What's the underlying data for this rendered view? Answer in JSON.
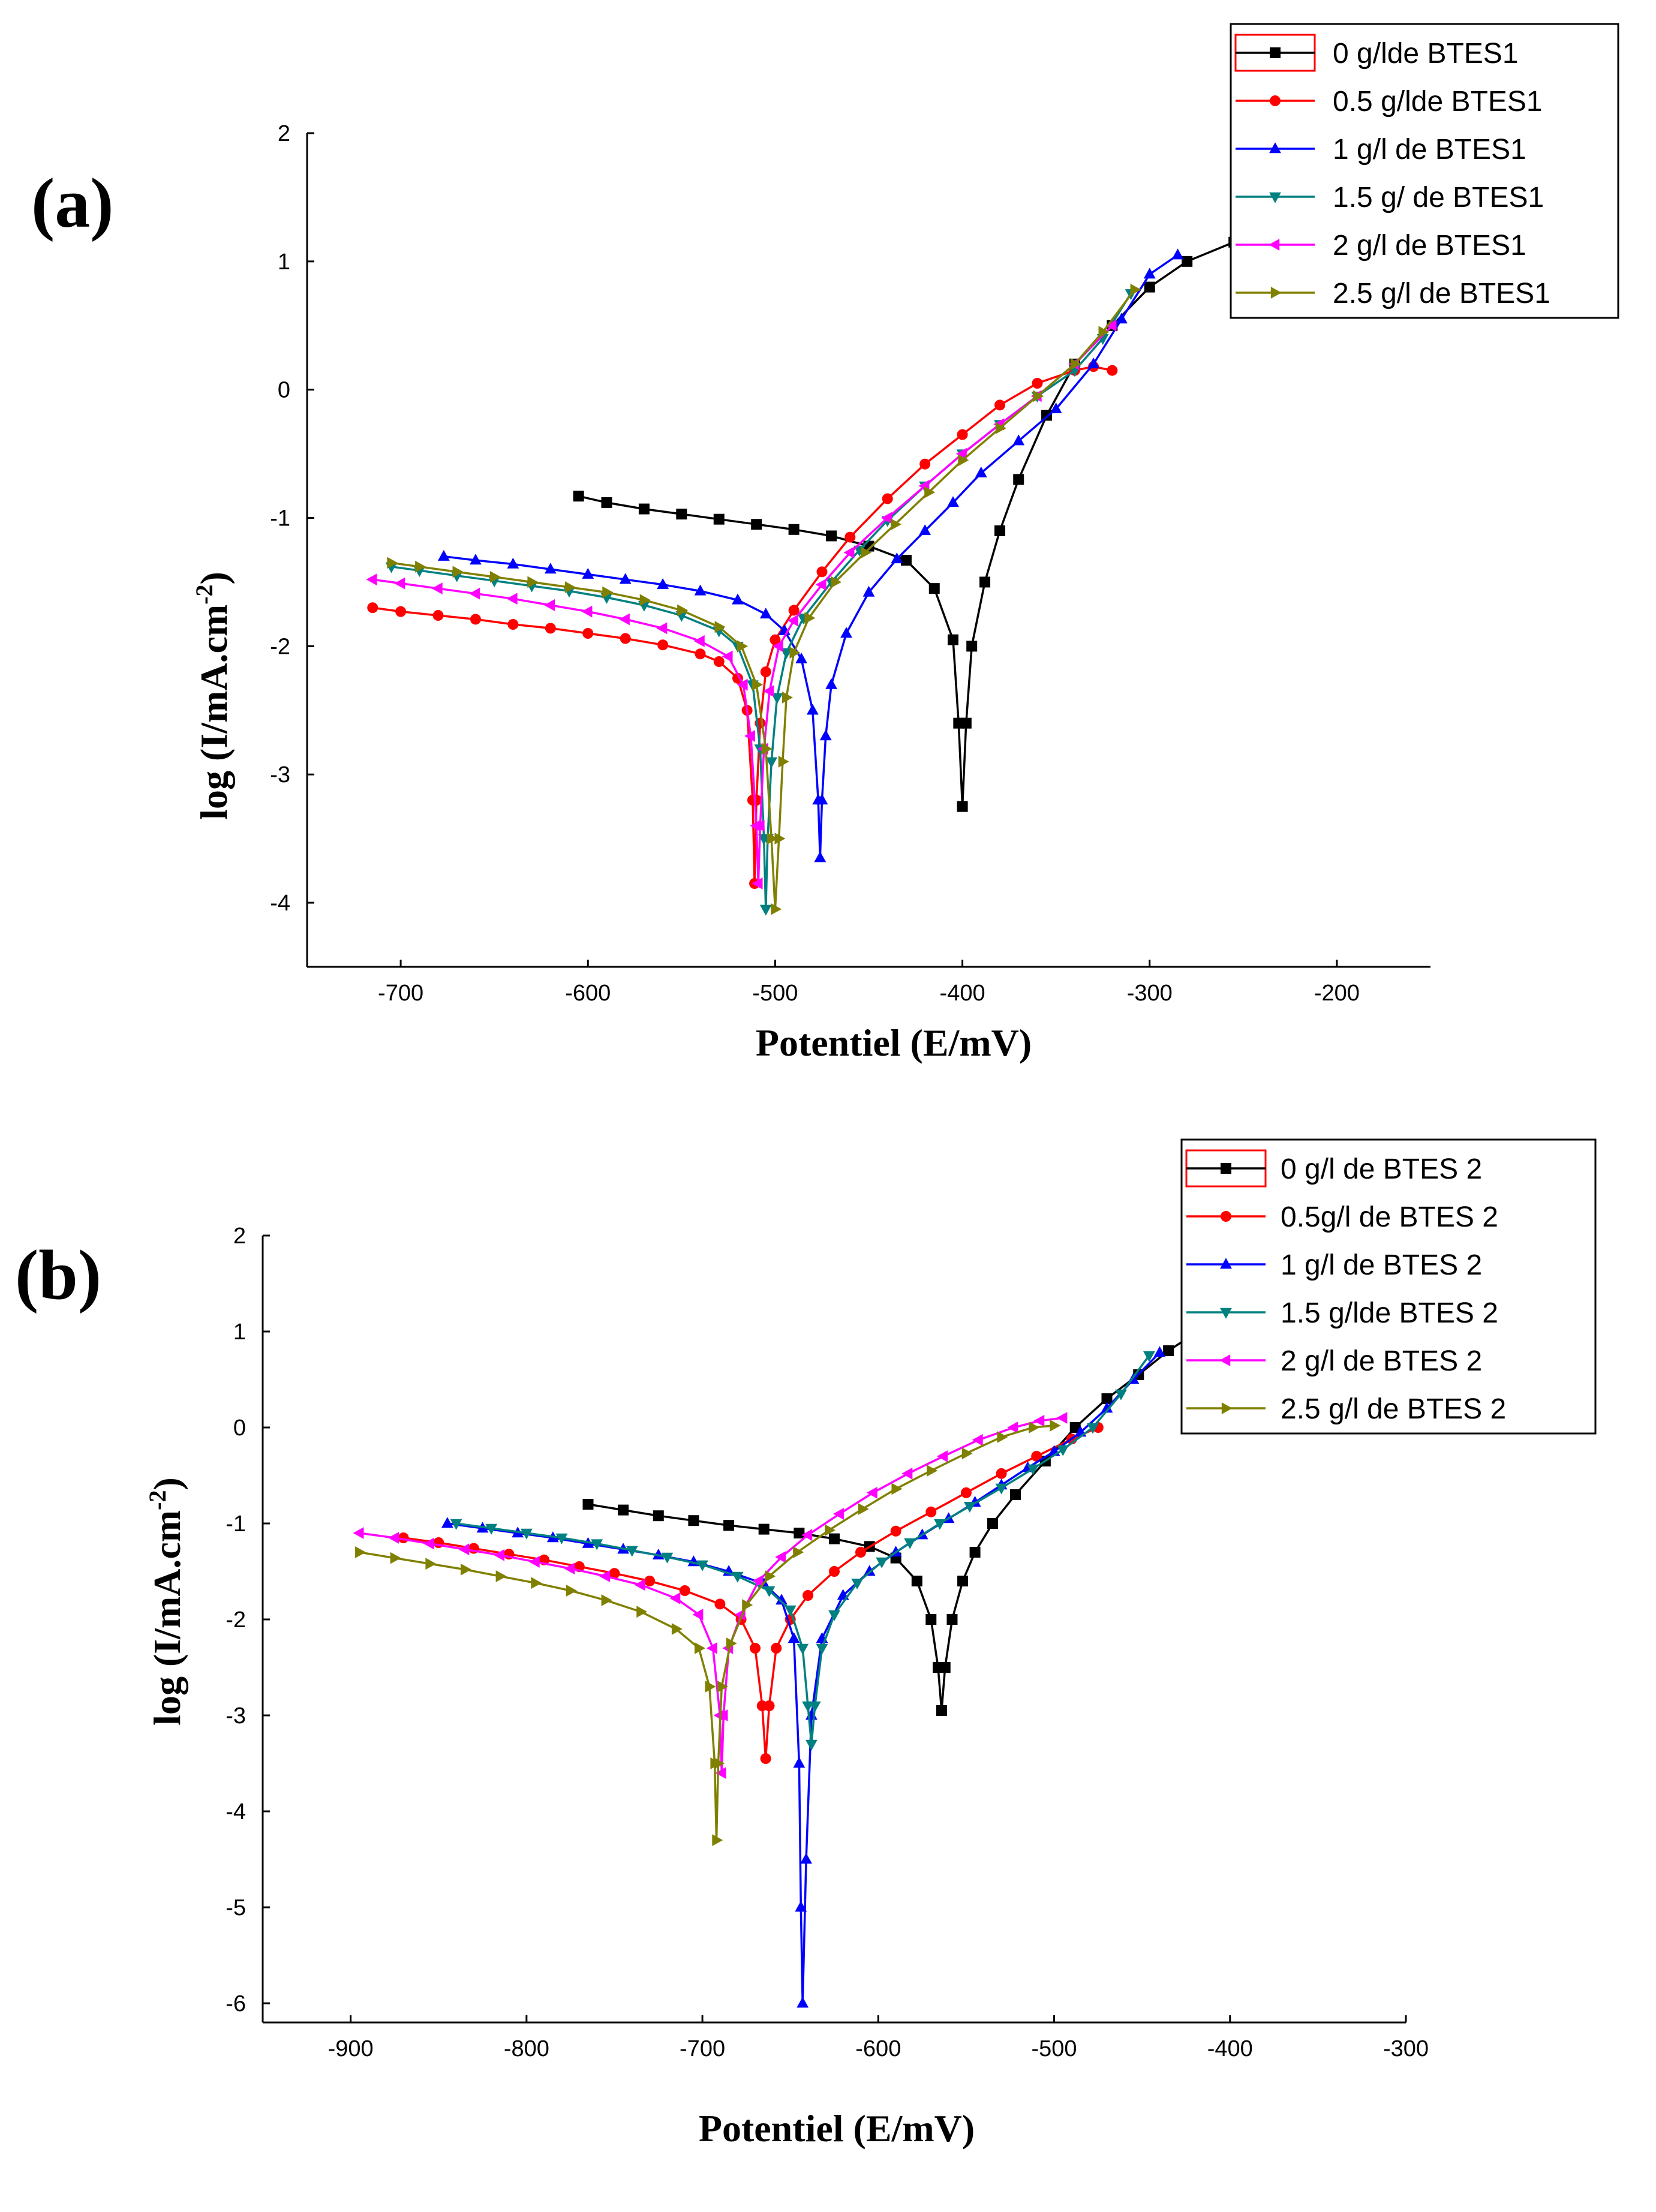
{
  "chart_data": [
    {
      "type": "line",
      "panel_label": "(a)",
      "xlabel": "Potentiel (E/mV)",
      "ylabel": "log (I/mA.cm-2)",
      "ylabel_main": "log (I/mA.cm",
      "ylabel_sup": "-2",
      "ylabel_end": ")",
      "xlim": [
        -750,
        -150
      ],
      "ylim": [
        -4.5,
        2
      ],
      "xticks": [
        -700,
        -600,
        -500,
        -400,
        -300,
        -200
      ],
      "yticks": [
        -4,
        -3,
        -2,
        -1,
        0,
        1,
        2
      ],
      "legend_position": "top-right",
      "series": [
        {
          "name": "0 g/lde BTES1",
          "color": "#000000",
          "marker": "square",
          "x": [
            -605,
            -590,
            -570,
            -550,
            -530,
            -510,
            -490,
            -470,
            -450,
            -430,
            -415,
            -405,
            -402,
            -400,
            -398,
            -395,
            -388,
            -380,
            -370,
            -355,
            -340,
            -320,
            -300,
            -280,
            -255
          ],
          "y": [
            -0.83,
            -0.88,
            -0.93,
            -0.97,
            -1.01,
            -1.05,
            -1.09,
            -1.14,
            -1.22,
            -1.33,
            -1.55,
            -1.95,
            -2.6,
            -3.25,
            -2.6,
            -2.0,
            -1.5,
            -1.1,
            -0.7,
            -0.2,
            0.2,
            0.5,
            0.8,
            1.0,
            1.15
          ]
        },
        {
          "name": "0.5 g/lde BTES1",
          "color": "#ff0000",
          "marker": "circle",
          "x": [
            -715,
            -700,
            -680,
            -660,
            -640,
            -620,
            -600,
            -580,
            -560,
            -540,
            -530,
            -520,
            -515,
            -512,
            -511,
            -510,
            -508,
            -505,
            -500,
            -490,
            -475,
            -460,
            -440,
            -420,
            -400,
            -380,
            -360,
            -340,
            -330,
            -320
          ],
          "y": [
            -1.7,
            -1.73,
            -1.76,
            -1.79,
            -1.83,
            -1.86,
            -1.9,
            -1.94,
            -1.99,
            -2.06,
            -2.12,
            -2.25,
            -2.5,
            -3.2,
            -3.85,
            -3.2,
            -2.6,
            -2.2,
            -1.95,
            -1.72,
            -1.42,
            -1.15,
            -0.85,
            -0.58,
            -0.35,
            -0.12,
            0.05,
            0.15,
            0.18,
            0.15
          ]
        },
        {
          "name": "1 g/l de BTES1",
          "color": "#0000ff",
          "marker": "triangle-up",
          "x": [
            -677,
            -660,
            -640,
            -620,
            -600,
            -580,
            -560,
            -540,
            -520,
            -505,
            -495,
            -486,
            -480,
            -477,
            -476,
            -475,
            -473,
            -470,
            -462,
            -450,
            -435,
            -420,
            -405,
            -390,
            -370,
            -350,
            -330,
            -315,
            -300,
            -285
          ],
          "y": [
            -1.3,
            -1.33,
            -1.36,
            -1.4,
            -1.44,
            -1.48,
            -1.52,
            -1.57,
            -1.64,
            -1.75,
            -1.88,
            -2.1,
            -2.5,
            -3.2,
            -3.65,
            -3.2,
            -2.7,
            -2.3,
            -1.9,
            -1.58,
            -1.32,
            -1.1,
            -0.88,
            -0.65,
            -0.4,
            -0.15,
            0.2,
            0.55,
            0.9,
            1.05
          ]
        },
        {
          "name": "1.5 g/ de BTES1",
          "color": "#008080",
          "marker": "triangle-down",
          "x": [
            -705,
            -690,
            -670,
            -650,
            -630,
            -610,
            -590,
            -570,
            -550,
            -530,
            -520,
            -512,
            -508,
            -506,
            -505,
            -504,
            -502,
            -499,
            -494,
            -485,
            -470,
            -455,
            -440,
            -420,
            -400,
            -380,
            -360,
            -340,
            -325,
            -310
          ],
          "y": [
            -1.38,
            -1.41,
            -1.45,
            -1.49,
            -1.53,
            -1.57,
            -1.62,
            -1.68,
            -1.76,
            -1.88,
            -2.0,
            -2.3,
            -2.8,
            -3.5,
            -4.05,
            -3.5,
            -2.9,
            -2.4,
            -2.05,
            -1.78,
            -1.5,
            -1.25,
            -1.02,
            -0.75,
            -0.5,
            -0.27,
            -0.05,
            0.15,
            0.4,
            0.75
          ]
        },
        {
          "name": "2 g/l de BTES1",
          "color": "#ff00ff",
          "marker": "triangle-left",
          "x": [
            -715,
            -700,
            -680,
            -660,
            -640,
            -620,
            -600,
            -580,
            -560,
            -540,
            -525,
            -517,
            -513,
            -510,
            -509,
            -508,
            -506,
            -503,
            -498,
            -490,
            -475,
            -460,
            -440,
            -420,
            -400,
            -380,
            -360,
            -340,
            -320
          ],
          "y": [
            -1.48,
            -1.51,
            -1.55,
            -1.59,
            -1.63,
            -1.68,
            -1.73,
            -1.79,
            -1.86,
            -1.96,
            -2.08,
            -2.3,
            -2.7,
            -3.4,
            -3.85,
            -3.4,
            -2.8,
            -2.35,
            -2.0,
            -1.8,
            -1.52,
            -1.27,
            -1.0,
            -0.75,
            -0.5,
            -0.27,
            -0.05,
            0.2,
            0.5
          ]
        },
        {
          "name": "2.5 g/l de BTES1",
          "color": "#808000",
          "marker": "triangle-right",
          "x": [
            -705,
            -690,
            -670,
            -650,
            -630,
            -610,
            -590,
            -570,
            -550,
            -530,
            -518,
            -510,
            -505,
            -502,
            -500,
            -498,
            -496,
            -494,
            -490,
            -482,
            -468,
            -452,
            -436,
            -418,
            -400,
            -380,
            -360,
            -340,
            -325,
            -308
          ],
          "y": [
            -1.35,
            -1.38,
            -1.42,
            -1.46,
            -1.5,
            -1.54,
            -1.58,
            -1.64,
            -1.72,
            -1.85,
            -2.0,
            -2.3,
            -2.8,
            -3.5,
            -4.05,
            -3.5,
            -2.9,
            -2.4,
            -2.05,
            -1.78,
            -1.5,
            -1.27,
            -1.05,
            -0.8,
            -0.55,
            -0.3,
            -0.05,
            0.2,
            0.45,
            0.78
          ]
        }
      ]
    },
    {
      "type": "line",
      "panel_label": "(b)",
      "xlabel": "Potentiel (E/mV)",
      "ylabel": "log (I/mA.cm-2)",
      "ylabel_main": "log (I/mA.cm",
      "ylabel_sup": "-2",
      "ylabel_end": ")",
      "xlim": [
        -950,
        -300
      ],
      "ylim": [
        -6.2,
        2
      ],
      "xticks": [
        -900,
        -800,
        -700,
        -600,
        -500,
        -400,
        -300
      ],
      "yticks": [
        -6,
        -5,
        -4,
        -3,
        -2,
        -1,
        0,
        1,
        2
      ],
      "legend_position": "top-right",
      "series": [
        {
          "name": "0  g/l de BTES 2",
          "color": "#000000",
          "marker": "square",
          "x": [
            -765,
            -745,
            -725,
            -705,
            -685,
            -665,
            -645,
            -625,
            -605,
            -590,
            -578,
            -570,
            -566,
            -564,
            -562,
            -558,
            -552,
            -545,
            -535,
            -522,
            -505,
            -488,
            -470,
            -452,
            -435,
            -425
          ],
          "y": [
            -0.8,
            -0.86,
            -0.92,
            -0.97,
            -1.02,
            -1.06,
            -1.1,
            -1.16,
            -1.24,
            -1.36,
            -1.6,
            -2.0,
            -2.5,
            -2.95,
            -2.5,
            -2.0,
            -1.6,
            -1.3,
            -1.0,
            -0.7,
            -0.35,
            0.0,
            0.3,
            0.55,
            0.8,
            0.92
          ]
        },
        {
          "name": "0.5g/l de BTES 2",
          "color": "#ff0000",
          "marker": "circle",
          "x": [
            -870,
            -850,
            -830,
            -810,
            -790,
            -770,
            -750,
            -730,
            -710,
            -690,
            -678,
            -670,
            -666,
            -664,
            -662,
            -658,
            -650,
            -640,
            -625,
            -610,
            -590,
            -570,
            -550,
            -530,
            -510,
            -490,
            -475
          ],
          "y": [
            -1.15,
            -1.2,
            -1.26,
            -1.32,
            -1.38,
            -1.45,
            -1.52,
            -1.6,
            -1.7,
            -1.84,
            -2.0,
            -2.3,
            -2.9,
            -3.45,
            -2.9,
            -2.3,
            -2.0,
            -1.75,
            -1.5,
            -1.3,
            -1.08,
            -0.88,
            -0.68,
            -0.48,
            -0.3,
            -0.12,
            0.0
          ]
        },
        {
          "name": "1 g/l de BTES 2",
          "color": "#0000ff",
          "marker": "triangle-up",
          "x": [
            -845,
            -825,
            -805,
            -785,
            -765,
            -745,
            -725,
            -705,
            -685,
            -665,
            -655,
            -648,
            -645,
            -644,
            -643,
            -641,
            -638,
            -632,
            -620,
            -605,
            -590,
            -575,
            -560,
            -545,
            -530,
            -515,
            -500,
            -485,
            -470,
            -455,
            -440
          ],
          "y": [
            -1.0,
            -1.05,
            -1.1,
            -1.15,
            -1.21,
            -1.27,
            -1.33,
            -1.4,
            -1.5,
            -1.63,
            -1.8,
            -2.2,
            -3.5,
            -5.0,
            -6.0,
            -4.5,
            -3.0,
            -2.2,
            -1.75,
            -1.5,
            -1.3,
            -1.12,
            -0.95,
            -0.78,
            -0.6,
            -0.42,
            -0.25,
            -0.05,
            0.2,
            0.5,
            0.78
          ]
        },
        {
          "name": "1.5 g/lde BTES 2",
          "color": "#008080",
          "marker": "triangle-down",
          "x": [
            -840,
            -820,
            -800,
            -780,
            -760,
            -740,
            -720,
            -700,
            -680,
            -662,
            -650,
            -643,
            -640,
            -638,
            -636,
            -632,
            -625,
            -612,
            -598,
            -582,
            -565,
            -548,
            -530,
            -512,
            -495,
            -478,
            -462,
            -446
          ],
          "y": [
            -1.0,
            -1.05,
            -1.1,
            -1.15,
            -1.21,
            -1.28,
            -1.35,
            -1.43,
            -1.55,
            -1.7,
            -1.9,
            -2.3,
            -2.9,
            -3.3,
            -2.9,
            -2.3,
            -1.95,
            -1.62,
            -1.4,
            -1.2,
            -1.0,
            -0.82,
            -0.63,
            -0.43,
            -0.23,
            0.0,
            0.35,
            0.75
          ]
        },
        {
          "name": "2 g/l de BTES 2",
          "color": "#ff00ff",
          "marker": "triangle-left",
          "x": [
            -895,
            -875,
            -855,
            -835,
            -815,
            -795,
            -775,
            -755,
            -735,
            -715,
            -702,
            -694,
            -690,
            -689,
            -688,
            -685,
            -678,
            -668,
            -655,
            -640,
            -622,
            -603,
            -583,
            -563,
            -543,
            -523,
            -508,
            -495
          ],
          "y": [
            -1.1,
            -1.15,
            -1.21,
            -1.27,
            -1.33,
            -1.4,
            -1.47,
            -1.55,
            -1.64,
            -1.78,
            -1.95,
            -2.3,
            -3.0,
            -3.6,
            -3.0,
            -2.3,
            -1.95,
            -1.6,
            -1.35,
            -1.12,
            -0.9,
            -0.68,
            -0.48,
            -0.3,
            -0.13,
            0.0,
            0.07,
            0.1
          ]
        },
        {
          "name": "2.5 g/l de BTES 2",
          "color": "#808000",
          "marker": "triangle-right",
          "x": [
            -895,
            -875,
            -855,
            -835,
            -815,
            -795,
            -775,
            -755,
            -735,
            -715,
            -702,
            -696,
            -693,
            -692,
            -691,
            -689,
            -684,
            -675,
            -662,
            -646,
            -628,
            -609,
            -590,
            -570,
            -550,
            -530,
            -512,
            -500
          ],
          "y": [
            -1.3,
            -1.36,
            -1.42,
            -1.48,
            -1.55,
            -1.62,
            -1.7,
            -1.8,
            -1.92,
            -2.1,
            -2.3,
            -2.7,
            -3.5,
            -4.3,
            -3.5,
            -2.7,
            -2.25,
            -1.85,
            -1.55,
            -1.3,
            -1.07,
            -0.85,
            -0.64,
            -0.45,
            -0.27,
            -0.1,
            0.0,
            0.02
          ]
        }
      ]
    }
  ]
}
